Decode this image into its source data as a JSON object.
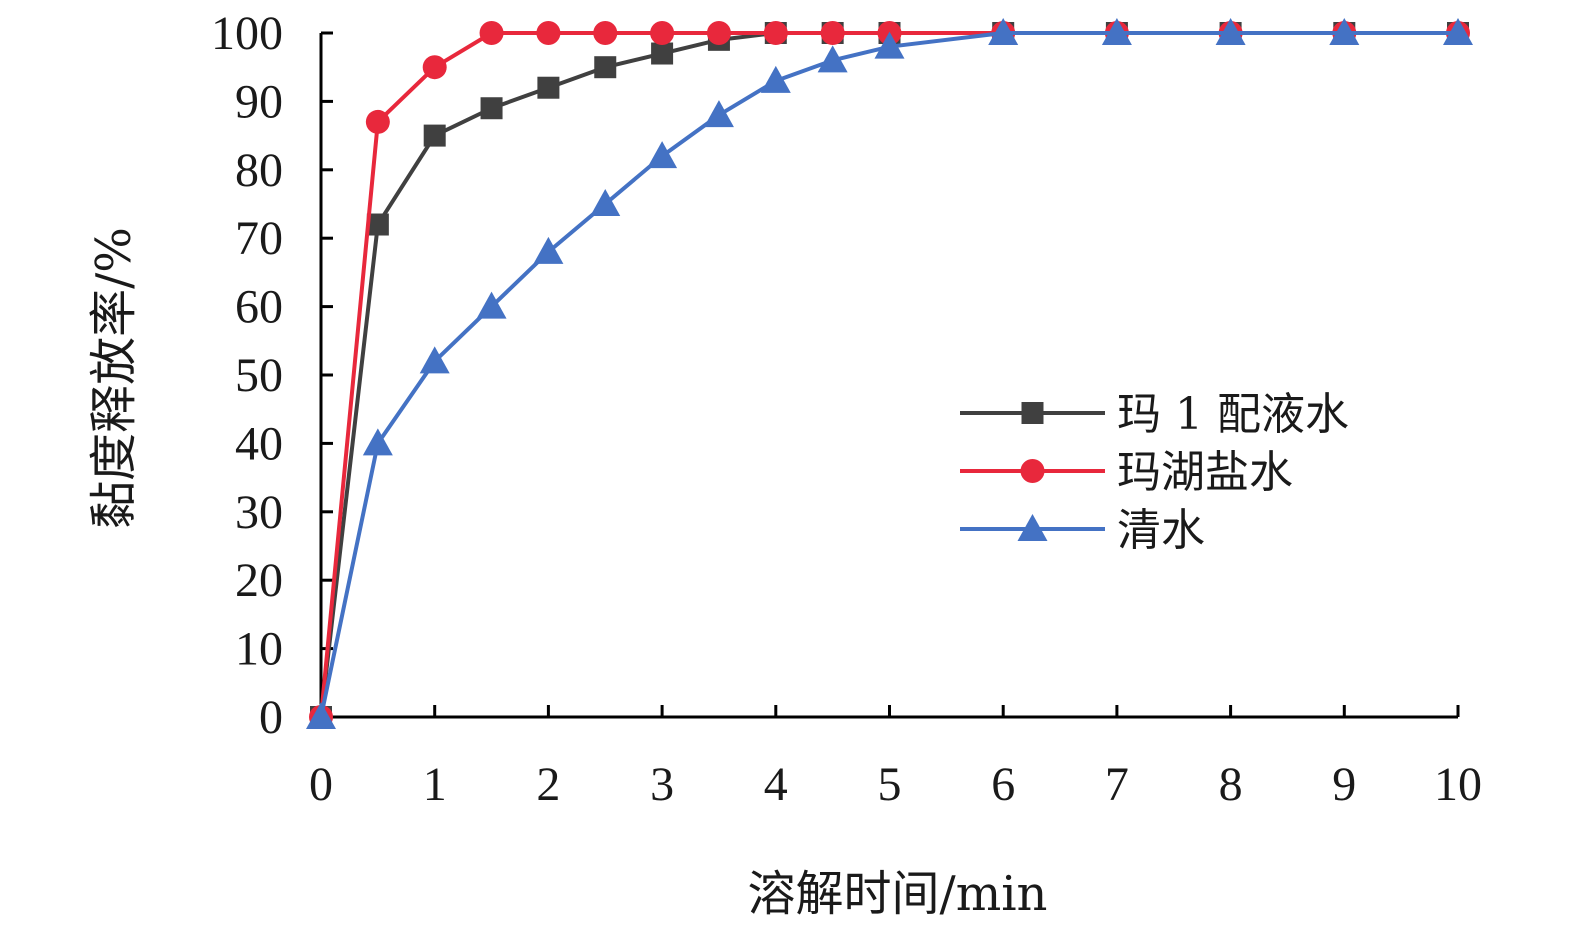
{
  "chart_data": {
    "type": "line",
    "xlabel": "溶解时间/min",
    "ylabel": "黏度释放率/%",
    "xlim": [
      0,
      10
    ],
    "ylim": [
      0,
      100
    ],
    "xticks": [
      0,
      1,
      2,
      3,
      4,
      5,
      6,
      7,
      8,
      9,
      10
    ],
    "yticks": [
      0,
      10,
      20,
      30,
      40,
      50,
      60,
      70,
      80,
      90,
      100
    ],
    "grid": false,
    "legend_position": "center-right",
    "series": [
      {
        "name": "玛 1 配液水",
        "color": "#404040",
        "marker": "square",
        "x": [
          0,
          0.5,
          1,
          1.5,
          2,
          2.5,
          3,
          3.5,
          4,
          4.5,
          5,
          6,
          7,
          8,
          9,
          10
        ],
        "values": [
          0,
          72,
          85,
          89,
          92,
          95,
          97,
          99,
          100,
          100,
          100,
          100,
          100,
          100,
          100,
          100
        ]
      },
      {
        "name": "玛湖盐水",
        "color": "#e8283c",
        "marker": "circle",
        "x": [
          0,
          0.5,
          1,
          1.5,
          2,
          2.5,
          3,
          3.5,
          4,
          4.5,
          5,
          6,
          7,
          8,
          9,
          10
        ],
        "values": [
          0,
          87,
          95,
          100,
          100,
          100,
          100,
          100,
          100,
          100,
          100,
          100,
          100,
          100,
          100,
          100
        ]
      },
      {
        "name": "清水",
        "color": "#4472c4",
        "marker": "triangle",
        "x": [
          0,
          0.5,
          1,
          1.5,
          2,
          2.5,
          3,
          3.5,
          4,
          4.5,
          5,
          6,
          7,
          8,
          9,
          10
        ],
        "values": [
          0,
          40,
          52,
          60,
          68,
          75,
          82,
          88,
          93,
          96,
          98,
          100,
          100,
          100,
          100,
          100
        ]
      }
    ]
  }
}
